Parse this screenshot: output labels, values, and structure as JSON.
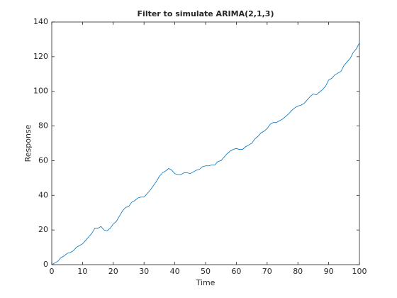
{
  "chart_data": {
    "type": "line",
    "title": "Filter to simulate ARIMA(2,1,3)",
    "x_label": "Time",
    "y_label": "Response",
    "x": [
      0,
      1,
      2,
      3,
      4,
      5,
      6,
      7,
      8,
      9,
      10,
      11,
      12,
      13,
      14,
      15,
      16,
      17,
      18,
      19,
      20,
      21,
      22,
      23,
      24,
      25,
      26,
      27,
      28,
      29,
      30,
      31,
      32,
      33,
      34,
      35,
      36,
      37,
      38,
      39,
      40,
      41,
      42,
      43,
      44,
      45,
      46,
      47,
      48,
      49,
      50,
      51,
      52,
      53,
      54,
      55,
      56,
      57,
      58,
      59,
      60,
      61,
      62,
      63,
      64,
      65,
      66,
      67,
      68,
      69,
      70,
      71,
      72,
      73,
      74,
      75,
      76,
      77,
      78,
      79,
      80,
      81,
      82,
      83,
      84,
      85,
      86,
      87,
      88,
      89,
      90,
      91,
      92,
      93,
      94,
      95,
      96,
      97,
      98,
      99,
      100
    ],
    "series": [
      {
        "color": "#0072bd",
        "values": [
          0,
          1,
          2,
          4,
          5,
          6.5,
          7,
          8,
          10,
          11,
          12,
          14,
          16,
          18,
          21,
          21,
          22,
          20,
          19.5,
          21,
          23.5,
          25,
          28,
          31,
          33,
          33.5,
          36,
          37,
          38.5,
          39,
          39,
          41,
          43,
          45.5,
          48,
          51,
          53,
          54,
          55.5,
          54.5,
          52.5,
          52,
          52,
          53,
          53,
          52.5,
          53.5,
          54.5,
          55,
          56.5,
          57,
          57,
          57.5,
          57.5,
          59.5,
          60,
          62,
          64,
          65.5,
          66.5,
          67,
          66.5,
          66.5,
          68,
          69,
          70,
          72.5,
          74,
          76,
          77,
          78.5,
          81,
          82,
          82,
          83,
          84,
          85.5,
          87,
          89,
          90.5,
          91.5,
          92,
          93,
          95,
          97,
          98.5,
          98,
          99.5,
          101,
          103,
          106.5,
          107.5,
          109.5,
          110.5,
          111.5,
          115,
          117,
          119,
          122.5,
          124.5,
          128
        ]
      }
    ],
    "xlim": [
      0,
      100
    ],
    "xticks": [
      0,
      10,
      20,
      30,
      40,
      50,
      60,
      70,
      80,
      90,
      100
    ],
    "ylim": [
      0,
      140
    ],
    "yticks": [
      0,
      20,
      40,
      60,
      80,
      100,
      120,
      140
    ]
  }
}
